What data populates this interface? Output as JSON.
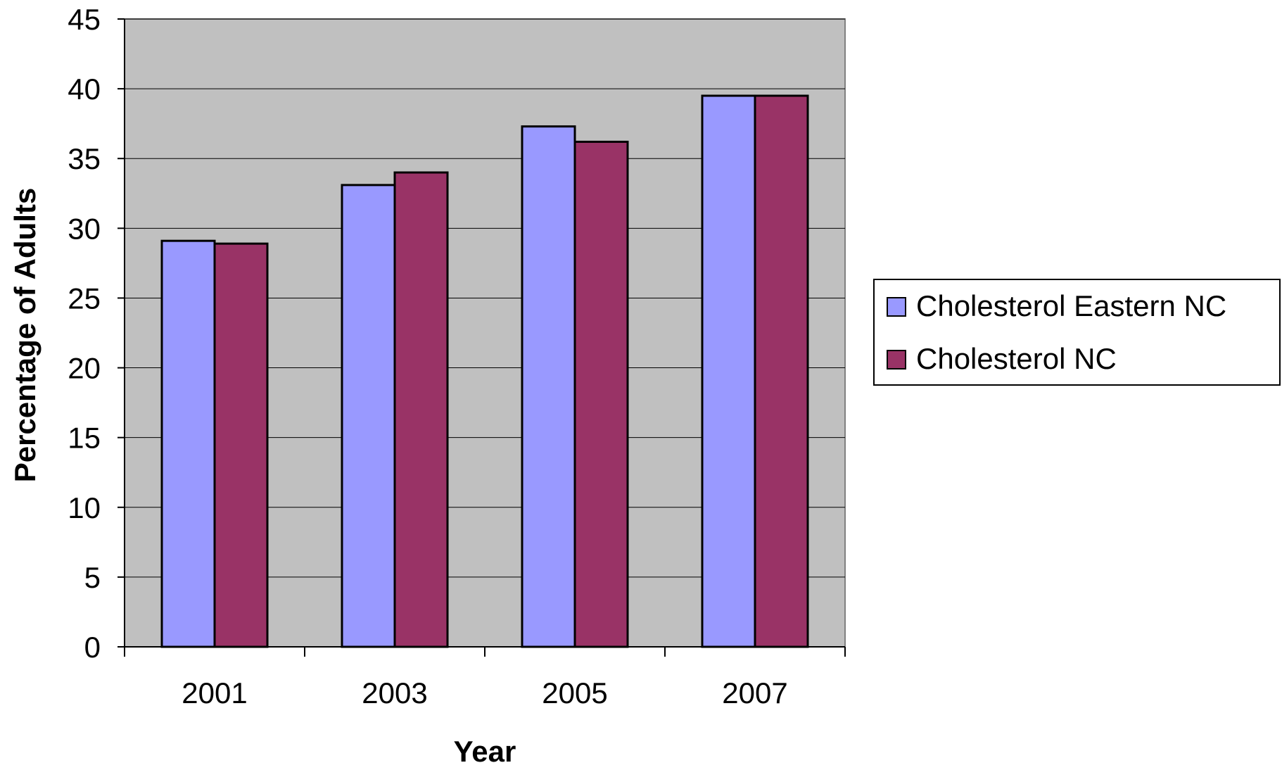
{
  "chart_data": {
    "type": "bar",
    "title": "",
    "xlabel": "Year",
    "ylabel": "Percentage of Adults",
    "categories": [
      "2001",
      "2003",
      "2005",
      "2007"
    ],
    "ylim": [
      0,
      45
    ],
    "yticks": [
      0,
      5,
      10,
      15,
      20,
      25,
      30,
      35,
      40,
      45
    ],
    "grid": true,
    "legend_position": "right",
    "plot_background": "#C0C0C0",
    "series": [
      {
        "name": "Cholesterol Eastern NC",
        "color": "#9999FF",
        "values": [
          29.1,
          33.1,
          37.3,
          39.5
        ]
      },
      {
        "name": "Cholesterol NC",
        "color": "#993366",
        "values": [
          28.9,
          34.0,
          36.2,
          39.5
        ]
      }
    ]
  }
}
